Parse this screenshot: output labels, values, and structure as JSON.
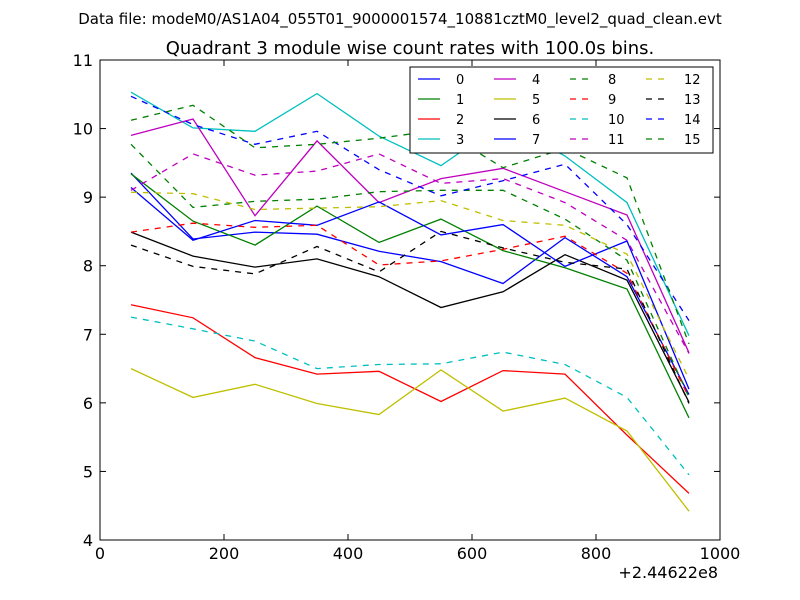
{
  "figure": {
    "suptitle": "Data file: modeM0/AS1A04_055T01_9000001574_10881cztM0_level2_quad_clean.evt"
  },
  "chart_data": {
    "type": "line",
    "title": "Quadrant 3 module wise count rates with 100.0s bins.",
    "xlabel": "",
    "ylabel": "",
    "x_offset_label": "+2.44622e8",
    "xlim": [
      0,
      1000
    ],
    "ylim": [
      4,
      11
    ],
    "xticks": [
      0,
      200,
      400,
      600,
      800,
      1000
    ],
    "yticks": [
      4,
      5,
      6,
      7,
      8,
      9,
      10,
      11
    ],
    "grid": false,
    "legend_position": "top-right",
    "legend_columns": 4,
    "x": [
      50,
      150,
      250,
      350,
      450,
      550,
      650,
      750,
      850,
      950
    ],
    "series": [
      {
        "name": "0",
        "color": "#0000ff",
        "dash": "solid",
        "values": [
          9.35,
          8.39,
          8.49,
          8.46,
          8.21,
          8.06,
          7.74,
          8.41,
          7.84,
          6.12
        ]
      },
      {
        "name": "1",
        "color": "#008000",
        "dash": "solid",
        "values": [
          9.34,
          8.65,
          8.3,
          8.87,
          8.34,
          8.68,
          8.22,
          7.97,
          7.66,
          5.78
        ]
      },
      {
        "name": "2",
        "color": "#ff0000",
        "dash": "solid",
        "values": [
          7.43,
          7.24,
          6.66,
          6.42,
          6.46,
          6.02,
          6.47,
          6.42,
          5.53,
          4.68
        ]
      },
      {
        "name": "3",
        "color": "#00bfbf",
        "dash": "solid",
        "values": [
          10.53,
          10.01,
          9.96,
          10.51,
          9.89,
          9.46,
          10.09,
          9.6,
          8.92,
          6.98
        ]
      },
      {
        "name": "4",
        "color": "#bf00bf",
        "dash": "solid",
        "values": [
          9.9,
          10.14,
          8.73,
          9.82,
          8.92,
          9.27,
          9.42,
          9.08,
          8.74,
          6.73
        ]
      },
      {
        "name": "5",
        "color": "#bfbf00",
        "dash": "solid",
        "values": [
          6.5,
          6.08,
          6.27,
          5.99,
          5.83,
          6.48,
          5.88,
          6.07,
          5.59,
          4.42
        ]
      },
      {
        "name": "6",
        "color": "#000000",
        "dash": "solid",
        "values": [
          8.49,
          8.14,
          7.98,
          8.1,
          7.84,
          7.39,
          7.62,
          8.16,
          7.79,
          6.01
        ]
      },
      {
        "name": "7",
        "color": "#0000ff",
        "dash": "solid",
        "values": [
          9.14,
          8.37,
          8.66,
          8.59,
          8.93,
          8.45,
          8.6,
          7.99,
          8.36,
          6.2
        ]
      },
      {
        "name": "8",
        "color": "#008000",
        "dash": "dashed",
        "values": [
          9.77,
          8.85,
          8.94,
          8.97,
          9.08,
          9.1,
          9.1,
          8.68,
          8.08,
          6.08
        ]
      },
      {
        "name": "9",
        "color": "#ff0000",
        "dash": "dashed",
        "values": [
          8.49,
          8.62,
          8.56,
          8.59,
          8.01,
          8.07,
          8.24,
          8.43,
          7.89,
          6.08
        ]
      },
      {
        "name": "10",
        "color": "#00bfbf",
        "dash": "dashed",
        "values": [
          7.25,
          7.08,
          6.9,
          6.5,
          6.56,
          6.57,
          6.74,
          6.56,
          6.08,
          4.95
        ]
      },
      {
        "name": "11",
        "color": "#bf00bf",
        "dash": "dashed",
        "values": [
          9.1,
          9.63,
          9.32,
          9.38,
          9.63,
          9.2,
          9.27,
          8.92,
          8.37,
          6.72
        ]
      },
      {
        "name": "12",
        "color": "#bfbf00",
        "dash": "dashed",
        "values": [
          9.07,
          9.05,
          8.82,
          8.84,
          8.86,
          8.95,
          8.66,
          8.59,
          8.17,
          6.35
        ]
      },
      {
        "name": "13",
        "color": "#000000",
        "dash": "dashed",
        "values": [
          8.3,
          7.99,
          7.88,
          8.28,
          7.91,
          8.5,
          8.26,
          8.05,
          7.95,
          5.99
        ]
      },
      {
        "name": "14",
        "color": "#0000ff",
        "dash": "dashed",
        "values": [
          10.47,
          10.06,
          9.77,
          9.96,
          9.4,
          9.02,
          9.24,
          9.48,
          8.6,
          7.2
        ]
      },
      {
        "name": "15",
        "color": "#008000",
        "dash": "dashed",
        "values": [
          10.12,
          10.34,
          9.72,
          9.77,
          9.86,
          9.98,
          9.43,
          9.71,
          9.28,
          6.86
        ]
      }
    ]
  }
}
